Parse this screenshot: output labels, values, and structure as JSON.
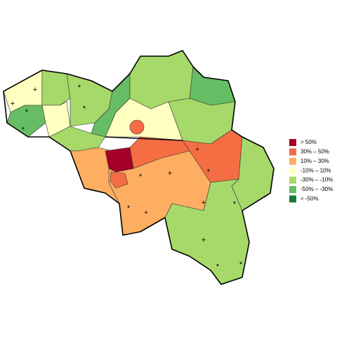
{
  "legend": {
    "items": [
      {
        "label": "> 50%",
        "color": "#a50026"
      },
      {
        "label": "30%  –  50%",
        "color": "#f46d43"
      },
      {
        "label": "10%  –  30%",
        "color": "#fdae61"
      },
      {
        "label": "-10%  –  10%",
        "color": "#ffffbf"
      },
      {
        "label": "-30%  –  -10%",
        "color": "#a6d96a"
      },
      {
        "label": "-50%  –  -30%",
        "color": "#66bd63"
      },
      {
        "label": "< -50%",
        "color": "#1a7a3a"
      }
    ]
  },
  "markers": [
    "+",
    "+",
    "*",
    "*",
    "*",
    "*",
    "*",
    "*",
    "*",
    "*",
    "*",
    "+",
    "+",
    "+",
    "*",
    "*",
    "*"
  ]
}
